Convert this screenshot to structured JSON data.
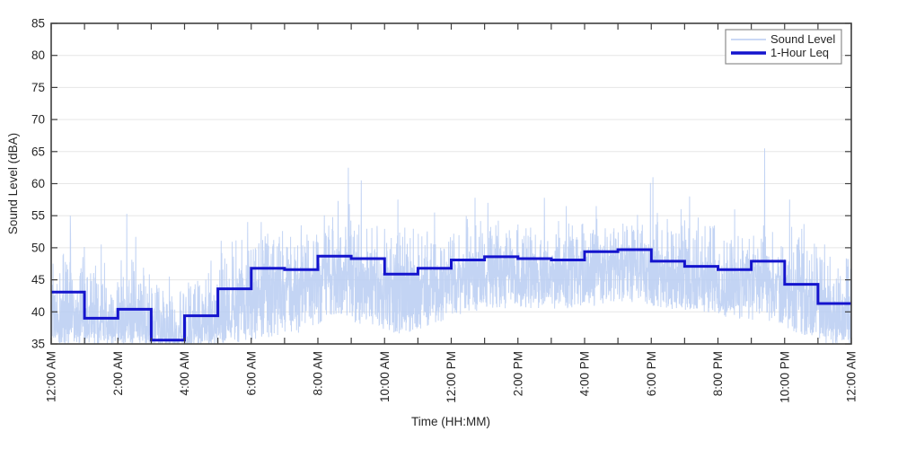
{
  "chart_data": {
    "type": "line",
    "title": "",
    "xlabel": "Time (HH:MM)",
    "ylabel": "Sound Level (dBA)",
    "ylim": [
      35,
      85
    ],
    "xlim_hours": [
      0,
      24
    ],
    "yticks": [
      35,
      40,
      45,
      50,
      55,
      60,
      65,
      70,
      75,
      80,
      85
    ],
    "xtick_hours": [
      0,
      2,
      4,
      6,
      8,
      10,
      12,
      14,
      16,
      18,
      20,
      22,
      24
    ],
    "minor_xtick_every_hours": 1,
    "xtick_labels": [
      "12:00 AM",
      "2:00 AM",
      "4:00 AM",
      "6:00 AM",
      "8:00 AM",
      "10:00 AM",
      "12:00 PM",
      "2:00 PM",
      "4:00 PM",
      "6:00 PM",
      "8:00 PM",
      "10:00 PM",
      "12:00 AM"
    ],
    "grid": "horizontal-only",
    "colors": {
      "background": "#ffffff",
      "grid": "#e6e6e6",
      "axis": "#3f3f3f",
      "text": "#262626",
      "sound_level": "#b9ccf2",
      "leq": "#1414cd"
    },
    "legend": {
      "position": "top-right",
      "entries": [
        {
          "label": "Sound Level",
          "color": "#b9ccf2",
          "line_width": 1.2
        },
        {
          "label": "1-Hour Leq",
          "color": "#1414cd",
          "line_width": 3.5
        }
      ]
    },
    "series": [
      {
        "name": "Sound Level",
        "type": "noisy-line",
        "color": "#b9ccf2",
        "samples_per_hour": 160,
        "hourly_envelope": {
          "lo": [
            35,
            35,
            35,
            35,
            35,
            35.2,
            36,
            36.5,
            39.5,
            37.5,
            36.5,
            38,
            40,
            40.5,
            40.5,
            40.5,
            41,
            41.5,
            40.5,
            40,
            39,
            38.5,
            36.5,
            35.3
          ],
          "mid": [
            40,
            38.6,
            39.6,
            36.6,
            38,
            41.5,
            44.6,
            44.6,
            46.8,
            46.2,
            44.2,
            45,
            46.3,
            46.8,
            46.5,
            46.3,
            47.5,
            47.8,
            46.2,
            45.5,
            45,
            45.8,
            42.5,
            40.2
          ],
          "hi": [
            46,
            44,
            45,
            41,
            43,
            48.5,
            50,
            50,
            51.5,
            51.5,
            50,
            50.5,
            51,
            51.5,
            51,
            51,
            52,
            52.5,
            52,
            51,
            50.5,
            51,
            48.5,
            46.5
          ],
          "peak": [
            55,
            50.5,
            55.3,
            45.5,
            48,
            54,
            54,
            53.5,
            62.5,
            60.5,
            57.5,
            55.5,
            57.8,
            57,
            57.8,
            56.5,
            56.5,
            60.1,
            61,
            58,
            56,
            65.5,
            57.5,
            50.5
          ],
          "peak_pos": [
            0.58,
            0.5,
            0.27,
            0.55,
            0.8,
            0.9,
            0.3,
            0.5,
            0.92,
            0.3,
            0.4,
            0.5,
            0.72,
            0.1,
            0.8,
            0.45,
            0.35,
            0.98,
            0.05,
            0.15,
            0.5,
            0.4,
            0.15,
            0.2
          ]
        }
      },
      {
        "name": "1-Hour Leq",
        "type": "step",
        "color": "#1414cd",
        "hourly_values": [
          43.1,
          39.0,
          40.4,
          35.6,
          39.4,
          43.6,
          46.8,
          46.6,
          48.7,
          48.3,
          45.9,
          46.8,
          48.1,
          48.6,
          48.3,
          48.1,
          49.4,
          49.7,
          47.9,
          47.1,
          46.6,
          47.9,
          44.3,
          41.3
        ]
      }
    ]
  }
}
